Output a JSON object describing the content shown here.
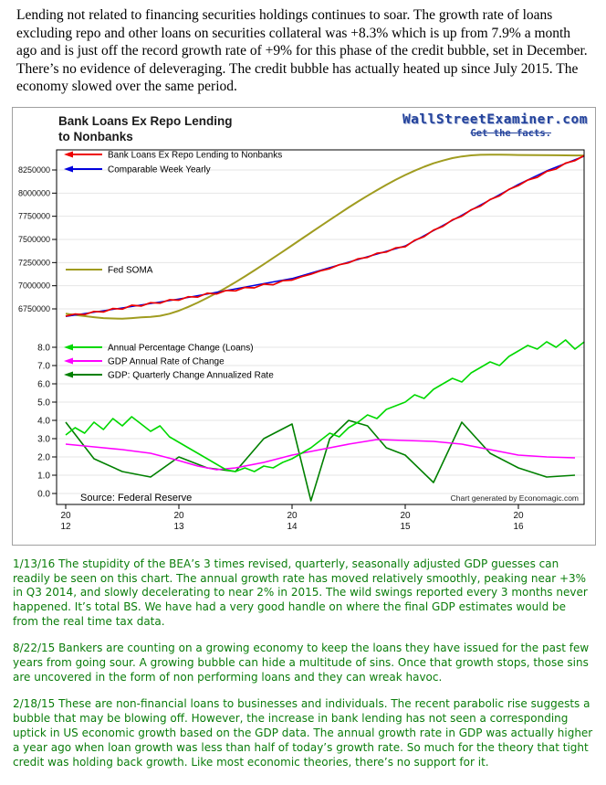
{
  "article": {
    "intro": "Lending not related to financing securities holdings continues to soar. The growth rate of loans excluding repo and other loans on securities collateral was +8.3% which is up from 7.9% a month ago and is just off the record growth rate of +9% for this phase of the credit bubble, set in December. There’s no evidence of deleveraging.  The credit bubble has actually heated up since July 2015.  The economy slowed over the same period.",
    "comments": [
      "1/13/16 The stupidity of the BEA’s 3 times revised, quarterly, seasonally adjusted GDP guesses can readily be seen on this chart. The annual growth rate has moved relatively smoothly, peaking near +3% in Q3 2014, and slowly decelerating to near 2% in 2015. The wild swings reported every 3 months never happened.  It’s total BS. We have had a very good handle on where the final GDP estimates would be from the real time tax data.",
      "8/22/15 Bankers are counting on a growing economy to keep the loans they have issued for the past few years from going sour. A growing bubble can hide a multitude of sins. Once that growth stops, those sins are uncovered in the form of non performing loans and they can wreak havoc.",
      "2/18/15 These are non-financial loans to businesses and individuals. The recent parabolic rise suggests a bubble that may be blowing off. However, the increase in bank lending has not seen a corresponding uptick in US economic growth based on the GDP data. The annual growth rate in GDP was actually higher a year ago when loan growth was less than half of today’s growth rate. So much for the theory that tight credit was holding back growth. Like most economic theories, there’s no support for it."
    ]
  },
  "chart": {
    "title_lines": [
      "Bank Loans Ex Repo Lending",
      "to Nonbanks"
    ],
    "watermark": "WallStreetExaminer.com",
    "tagline": "Get the facts.",
    "source": "Source: Federal Reserve",
    "credit": "Chart generated by Economagic.com"
  },
  "chart_data": {
    "type": "line",
    "title": "Bank Loans Ex Repo Lending to Nonbanks",
    "grid": true,
    "legend_position": "inside-left",
    "x_axis": {
      "range": [
        2011.92,
        2016.58
      ],
      "ticks": [
        2012,
        2013,
        2014,
        2015,
        2016
      ],
      "tick_labels_top": [
        "20",
        "20",
        "20",
        "20",
        "20"
      ],
      "tick_labels_bottom": [
        "12",
        "13",
        "14",
        "15",
        "16"
      ]
    },
    "y_axis_levels": {
      "unit": "millions of dollars",
      "range": [
        6600000,
        8470000
      ],
      "ticks": [
        8250000,
        8000000,
        7750000,
        7500000,
        7250000,
        7000000,
        6750000
      ],
      "tick_labels": [
        "8250000",
        "8000000",
        "7750000",
        "7500000",
        "7250000",
        "7000000",
        "6750000"
      ]
    },
    "y_axis_percent": {
      "unit": "percent",
      "range": [
        -0.6,
        8.4
      ],
      "ticks": [
        8,
        7,
        6,
        5,
        4,
        3,
        2,
        1,
        0
      ],
      "tick_labels": [
        "8.0",
        "7.0",
        "6.0",
        "5.0",
        "4.0",
        "3.0",
        "2.0",
        "1.0",
        "0.0"
      ]
    },
    "series": [
      {
        "name": "Bank Loans Ex Repo Lending to Nonbanks",
        "color": "#ee0000",
        "scale": "levels",
        "width": 1.7,
        "legend_arrow": true,
        "points": [
          [
            2012.0,
            6672000
          ],
          [
            2012.083,
            6695000
          ],
          [
            2012.167,
            6688000
          ],
          [
            2012.25,
            6722000
          ],
          [
            2012.333,
            6716000
          ],
          [
            2012.417,
            6754000
          ],
          [
            2012.5,
            6747000
          ],
          [
            2012.583,
            6789000
          ],
          [
            2012.667,
            6781000
          ],
          [
            2012.75,
            6817000
          ],
          [
            2012.833,
            6811000
          ],
          [
            2012.917,
            6849000
          ],
          [
            2013.0,
            6844000
          ],
          [
            2013.083,
            6881000
          ],
          [
            2013.167,
            6877000
          ],
          [
            2013.25,
            6919000
          ],
          [
            2013.333,
            6911000
          ],
          [
            2013.417,
            6949000
          ],
          [
            2013.5,
            6944000
          ],
          [
            2013.583,
            6981000
          ],
          [
            2013.667,
            6977000
          ],
          [
            2013.75,
            7017000
          ],
          [
            2013.833,
            7011000
          ],
          [
            2013.917,
            7054000
          ],
          [
            2014.0,
            7061000
          ],
          [
            2014.083,
            7097000
          ],
          [
            2014.167,
            7124000
          ],
          [
            2014.25,
            7161000
          ],
          [
            2014.333,
            7184000
          ],
          [
            2014.417,
            7227000
          ],
          [
            2014.5,
            7247000
          ],
          [
            2014.583,
            7291000
          ],
          [
            2014.667,
            7307000
          ],
          [
            2014.75,
            7351000
          ],
          [
            2014.833,
            7364000
          ],
          [
            2014.917,
            7409000
          ],
          [
            2015.0,
            7421000
          ],
          [
            2015.083,
            7491000
          ],
          [
            2015.167,
            7531000
          ],
          [
            2015.25,
            7601000
          ],
          [
            2015.333,
            7641000
          ],
          [
            2015.417,
            7711000
          ],
          [
            2015.5,
            7751000
          ],
          [
            2015.583,
            7821000
          ],
          [
            2015.667,
            7861000
          ],
          [
            2015.75,
            7931000
          ],
          [
            2015.833,
            7971000
          ],
          [
            2015.917,
            8041000
          ],
          [
            2016.0,
            8081000
          ],
          [
            2016.083,
            8141000
          ],
          [
            2016.167,
            8171000
          ],
          [
            2016.25,
            8234000
          ],
          [
            2016.333,
            8261000
          ],
          [
            2016.417,
            8324000
          ],
          [
            2016.5,
            8351000
          ],
          [
            2016.583,
            8407000
          ]
        ]
      },
      {
        "name": "Comparable Week Yearly",
        "color": "#0000dd",
        "scale": "levels",
        "width": 1.5,
        "legend_arrow": true,
        "points": [
          [
            2012.0,
            6668000
          ],
          [
            2012.25,
            6714000
          ],
          [
            2012.5,
            6760000
          ],
          [
            2012.75,
            6808000
          ],
          [
            2013.0,
            6856000
          ],
          [
            2013.25,
            6910000
          ],
          [
            2013.5,
            6966000
          ],
          [
            2013.75,
            7022000
          ],
          [
            2014.0,
            7078000
          ],
          [
            2014.25,
            7166000
          ],
          [
            2014.5,
            7254000
          ],
          [
            2014.75,
            7342000
          ],
          [
            2015.0,
            7430000
          ],
          [
            2015.25,
            7596000
          ],
          [
            2015.5,
            7762000
          ],
          [
            2015.75,
            7928000
          ],
          [
            2016.0,
            8094000
          ],
          [
            2016.25,
            8240000
          ],
          [
            2016.583,
            8400000
          ]
        ]
      },
      {
        "name": "Fed SOMA",
        "color": "#a09c20",
        "scale": "levels",
        "width": 2.0,
        "legend_arrow": false,
        "points": [
          [
            2012.0,
            6698000
          ],
          [
            2012.083,
            6685000
          ],
          [
            2012.167,
            6672000
          ],
          [
            2012.25,
            6660000
          ],
          [
            2012.333,
            6650000
          ],
          [
            2012.417,
            6646000
          ],
          [
            2012.5,
            6644000
          ],
          [
            2012.583,
            6650000
          ],
          [
            2012.667,
            6658000
          ],
          [
            2012.75,
            6664000
          ],
          [
            2012.833,
            6675000
          ],
          [
            2012.917,
            6698000
          ],
          [
            2013.0,
            6730000
          ],
          [
            2013.083,
            6772000
          ],
          [
            2013.167,
            6818000
          ],
          [
            2013.25,
            6868000
          ],
          [
            2013.333,
            6922000
          ],
          [
            2013.417,
            6978000
          ],
          [
            2013.5,
            7038000
          ],
          [
            2013.583,
            7100000
          ],
          [
            2013.667,
            7165000
          ],
          [
            2013.75,
            7232000
          ],
          [
            2013.833,
            7300000
          ],
          [
            2013.917,
            7368000
          ],
          [
            2014.0,
            7436000
          ],
          [
            2014.083,
            7505000
          ],
          [
            2014.167,
            7574000
          ],
          [
            2014.25,
            7642000
          ],
          [
            2014.333,
            7710000
          ],
          [
            2014.417,
            7778000
          ],
          [
            2014.5,
            7845000
          ],
          [
            2014.583,
            7910000
          ],
          [
            2014.667,
            7972000
          ],
          [
            2014.75,
            8032000
          ],
          [
            2014.833,
            8090000
          ],
          [
            2014.917,
            8145000
          ],
          [
            2015.0,
            8196000
          ],
          [
            2015.083,
            8242000
          ],
          [
            2015.167,
            8285000
          ],
          [
            2015.25,
            8322000
          ],
          [
            2015.333,
            8352000
          ],
          [
            2015.417,
            8378000
          ],
          [
            2015.5,
            8396000
          ],
          [
            2015.583,
            8408000
          ],
          [
            2015.667,
            8414000
          ],
          [
            2015.75,
            8416000
          ],
          [
            2015.833,
            8415000
          ],
          [
            2015.917,
            8414000
          ],
          [
            2016.0,
            8412000
          ],
          [
            2016.167,
            8410000
          ],
          [
            2016.333,
            8409000
          ],
          [
            2016.5,
            8407000
          ],
          [
            2016.583,
            8406000
          ]
        ]
      },
      {
        "name": "Annual Percentage Change (Loans)",
        "color": "#00d800",
        "scale": "percent",
        "width": 1.6,
        "legend_arrow": true,
        "points": [
          [
            2012.0,
            3.2
          ],
          [
            2012.083,
            3.6
          ],
          [
            2012.167,
            3.3
          ],
          [
            2012.25,
            3.9
          ],
          [
            2012.333,
            3.5
          ],
          [
            2012.417,
            4.1
          ],
          [
            2012.5,
            3.7
          ],
          [
            2012.583,
            4.2
          ],
          [
            2012.667,
            3.8
          ],
          [
            2012.75,
            3.4
          ],
          [
            2012.833,
            3.7
          ],
          [
            2012.917,
            3.1
          ],
          [
            2013.0,
            2.8
          ],
          [
            2013.083,
            2.5
          ],
          [
            2013.167,
            2.2
          ],
          [
            2013.25,
            1.9
          ],
          [
            2013.333,
            1.6
          ],
          [
            2013.417,
            1.3
          ],
          [
            2013.5,
            1.2
          ],
          [
            2013.583,
            1.4
          ],
          [
            2013.667,
            1.2
          ],
          [
            2013.75,
            1.5
          ],
          [
            2013.833,
            1.4
          ],
          [
            2013.917,
            1.7
          ],
          [
            2014.0,
            1.9
          ],
          [
            2014.083,
            2.2
          ],
          [
            2014.167,
            2.5
          ],
          [
            2014.25,
            2.9
          ],
          [
            2014.333,
            3.3
          ],
          [
            2014.417,
            3.1
          ],
          [
            2014.5,
            3.6
          ],
          [
            2014.583,
            3.9
          ],
          [
            2014.667,
            4.3
          ],
          [
            2014.75,
            4.1
          ],
          [
            2014.833,
            4.6
          ],
          [
            2014.917,
            4.8
          ],
          [
            2015.0,
            5.0
          ],
          [
            2015.083,
            5.4
          ],
          [
            2015.167,
            5.2
          ],
          [
            2015.25,
            5.7
          ],
          [
            2015.333,
            6.0
          ],
          [
            2015.417,
            6.3
          ],
          [
            2015.5,
            6.1
          ],
          [
            2015.583,
            6.6
          ],
          [
            2015.667,
            6.9
          ],
          [
            2015.75,
            7.2
          ],
          [
            2015.833,
            7.0
          ],
          [
            2015.917,
            7.5
          ],
          [
            2016.0,
            7.8
          ],
          [
            2016.083,
            8.1
          ],
          [
            2016.167,
            7.9
          ],
          [
            2016.25,
            8.3
          ],
          [
            2016.333,
            8.0
          ],
          [
            2016.417,
            8.4
          ],
          [
            2016.5,
            7.9
          ],
          [
            2016.583,
            8.3
          ]
        ]
      },
      {
        "name": "GDP Annual Rate of Change",
        "color": "#ff00ff",
        "scale": "percent",
        "width": 1.6,
        "legend_arrow": true,
        "points": [
          [
            2012.0,
            2.7
          ],
          [
            2012.25,
            2.55
          ],
          [
            2012.5,
            2.4
          ],
          [
            2012.75,
            2.2
          ],
          [
            2013.0,
            1.8
          ],
          [
            2013.167,
            1.5
          ],
          [
            2013.333,
            1.3
          ],
          [
            2013.5,
            1.4
          ],
          [
            2013.75,
            1.7
          ],
          [
            2014.0,
            2.1
          ],
          [
            2014.25,
            2.4
          ],
          [
            2014.5,
            2.7
          ],
          [
            2014.75,
            2.95
          ],
          [
            2015.0,
            2.9
          ],
          [
            2015.25,
            2.85
          ],
          [
            2015.5,
            2.7
          ],
          [
            2015.75,
            2.4
          ],
          [
            2016.0,
            2.1
          ],
          [
            2016.25,
            2.0
          ],
          [
            2016.5,
            1.95
          ]
        ]
      },
      {
        "name": "GDP: Quarterly Change Annualized Rate",
        "color": "#008000",
        "scale": "percent",
        "width": 1.6,
        "legend_arrow": true,
        "points": [
          [
            2012.0,
            3.9
          ],
          [
            2012.25,
            1.9
          ],
          [
            2012.5,
            1.2
          ],
          [
            2012.75,
            0.9
          ],
          [
            2013.0,
            2.0
          ],
          [
            2013.25,
            1.4
          ],
          [
            2013.5,
            1.2
          ],
          [
            2013.75,
            3.0
          ],
          [
            2014.0,
            3.8
          ],
          [
            2014.167,
            -0.4
          ],
          [
            2014.333,
            3.0
          ],
          [
            2014.5,
            4.0
          ],
          [
            2014.667,
            3.7
          ],
          [
            2014.833,
            2.5
          ],
          [
            2015.0,
            2.1
          ],
          [
            2015.25,
            0.6
          ],
          [
            2015.5,
            3.9
          ],
          [
            2015.75,
            2.2
          ],
          [
            2016.0,
            1.4
          ],
          [
            2016.25,
            0.9
          ],
          [
            2016.5,
            1.0
          ]
        ]
      }
    ]
  }
}
